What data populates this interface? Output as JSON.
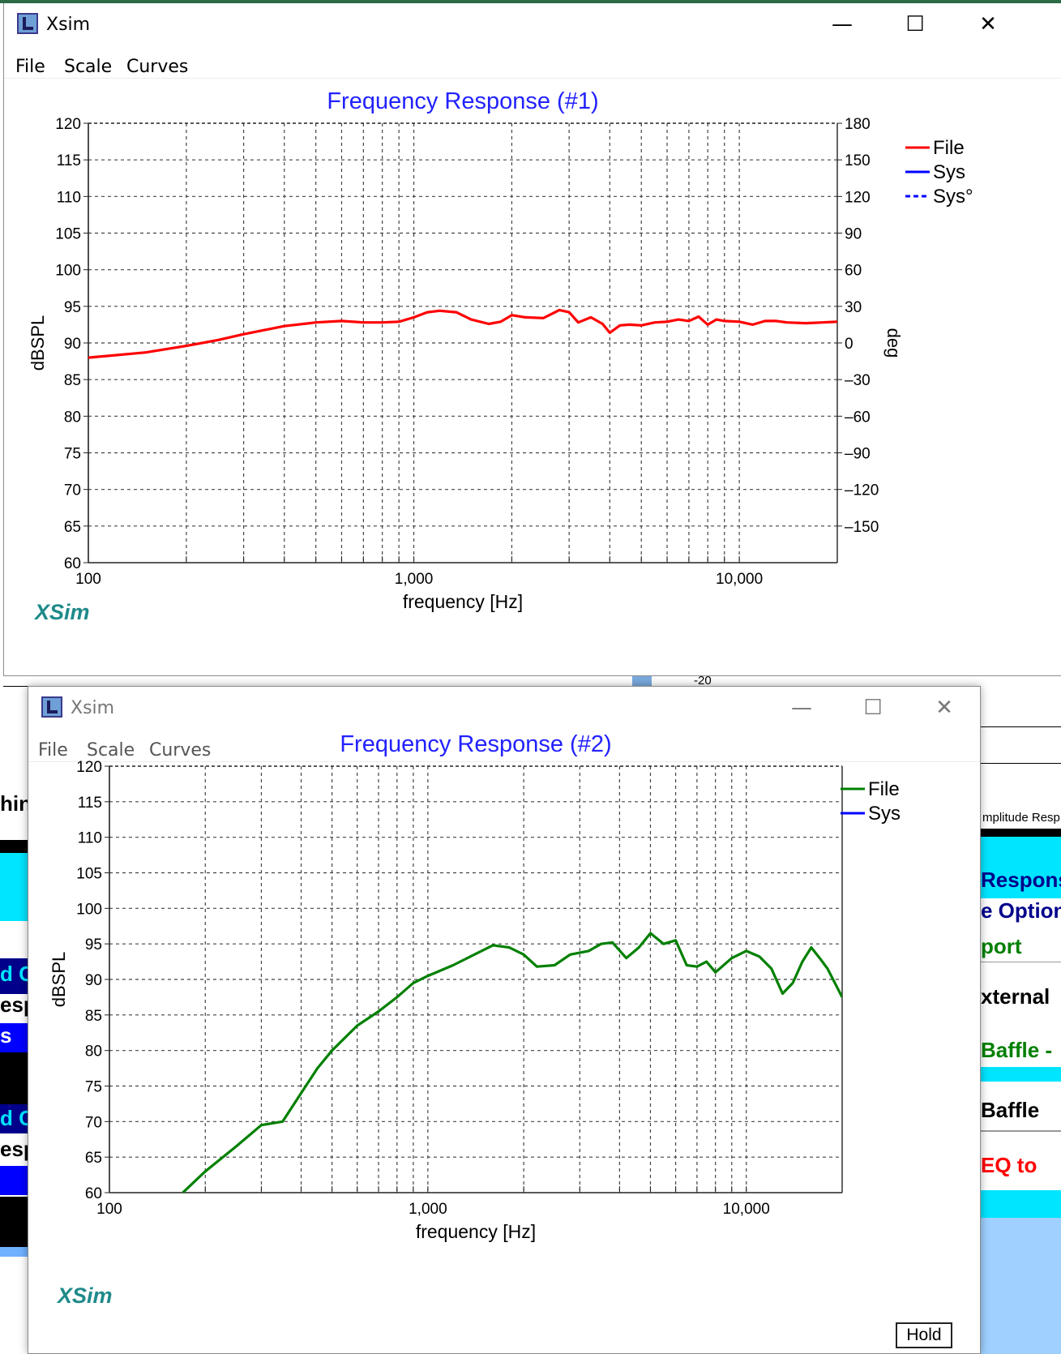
{
  "background": {
    "fragments": [
      "hin",
      "d C",
      "esp",
      "s",
      "d C",
      "esp",
      "Respons",
      "e Option",
      "port",
      "xternal",
      "Baffle -",
      "Baffle",
      "EQ to",
      "mplitude Resp",
      "-20"
    ]
  },
  "windows": [
    {
      "title": "Xsim",
      "menu": [
        "File",
        "Scale",
        "Curves"
      ],
      "minimize": "—",
      "maximize": "☐",
      "close": "✕",
      "logo": "XSim",
      "chart_data": {
        "type": "line",
        "title": "Frequency Response (#1)",
        "xlabel": "frequency [Hz]",
        "ylabel": "dBSPL",
        "y2label": "deg",
        "xscale": "log",
        "xlim": [
          100,
          20000
        ],
        "ylim": [
          60,
          120
        ],
        "y2lim": [
          -180,
          180
        ],
        "xticks": [
          100,
          1000,
          10000
        ],
        "xtick_labels": [
          "100",
          "1,000",
          "10,000"
        ],
        "yticks": [
          60,
          65,
          70,
          75,
          80,
          85,
          90,
          95,
          100,
          105,
          110,
          115,
          120
        ],
        "y2ticks": [
          -150,
          -120,
          -90,
          -60,
          -30,
          0,
          30,
          60,
          90,
          120,
          150,
          180
        ],
        "y2tick_labels": [
          "–150",
          "–120",
          "–90",
          "–60",
          "–30",
          "0",
          "30",
          "60",
          "90",
          "120",
          "150",
          "180"
        ],
        "grid": true,
        "legend": [
          {
            "name": "File",
            "color": "#ff0000",
            "style": "solid"
          },
          {
            "name": "Sys",
            "color": "#0000ff",
            "style": "solid"
          },
          {
            "name": "Sys°",
            "color": "#0000ff",
            "style": "dashed"
          }
        ],
        "legend_position": "right",
        "series": [
          {
            "name": "File",
            "color": "#ff0000",
            "x": [
              100,
              150,
              200,
              250,
              300,
              400,
              500,
              600,
              700,
              800,
              900,
              1000,
              1100,
              1200,
              1350,
              1500,
              1700,
              1850,
              2000,
              2200,
              2500,
              2800,
              3000,
              3200,
              3500,
              3800,
              4000,
              4300,
              4600,
              5000,
              5500,
              6000,
              6500,
              7000,
              7500,
              8000,
              8500,
              9000,
              10000,
              11000,
              12000,
              13000,
              14000,
              16000,
              18000,
              20000
            ],
            "y": [
              88.0,
              88.7,
              89.6,
              90.4,
              91.2,
              92.3,
              92.8,
              93.0,
              92.8,
              92.8,
              92.9,
              93.5,
              94.2,
              94.4,
              94.2,
              93.2,
              92.6,
              92.9,
              93.8,
              93.5,
              93.4,
              94.5,
              94.2,
              92.8,
              93.5,
              92.6,
              91.4,
              92.4,
              92.5,
              92.4,
              92.8,
              92.9,
              93.2,
              93.0,
              93.6,
              92.5,
              93.2,
              93.0,
              92.9,
              92.5,
              93.0,
              93.0,
              92.8,
              92.7,
              92.8,
              92.9
            ]
          }
        ]
      }
    },
    {
      "title": "Xsim",
      "menu": [
        "File",
        "Scale",
        "Curves"
      ],
      "minimize": "—",
      "maximize": "☐",
      "close": "✕",
      "logo": "XSim",
      "hold_label": "Hold",
      "chart_data": {
        "type": "line",
        "title": "Frequency Response (#2)",
        "xlabel": "frequency [Hz]",
        "ylabel": "dBSPL",
        "xscale": "log",
        "xlim": [
          100,
          20000
        ],
        "ylim": [
          60,
          120
        ],
        "xticks": [
          100,
          1000,
          10000
        ],
        "xtick_labels": [
          "100",
          "1,000",
          "10,000"
        ],
        "yticks": [
          60,
          65,
          70,
          75,
          80,
          85,
          90,
          95,
          100,
          105,
          110,
          115,
          120
        ],
        "grid": true,
        "legend": [
          {
            "name": "File",
            "color": "#008000",
            "style": "solid"
          },
          {
            "name": "Sys",
            "color": "#0000ff",
            "style": "solid"
          }
        ],
        "legend_position": "right",
        "series": [
          {
            "name": "File",
            "color": "#008000",
            "x": [
              170,
              200,
              250,
              300,
              350,
              400,
              450,
              500,
              600,
              700,
              800,
              900,
              1000,
              1200,
              1400,
              1600,
              1800,
              2000,
              2200,
              2500,
              2800,
              3200,
              3500,
              3800,
              4200,
              4600,
              5000,
              5500,
              6000,
              6500,
              7000,
              7500,
              8000,
              9000,
              10000,
              11000,
              12000,
              13000,
              14000,
              15000,
              16000,
              17000,
              18000,
              20000
            ],
            "y": [
              60.0,
              63.0,
              66.5,
              69.5,
              70.0,
              74.0,
              77.5,
              80.0,
              83.5,
              85.5,
              87.5,
              89.5,
              90.5,
              92.0,
              93.5,
              94.8,
              94.5,
              93.5,
              91.8,
              92.0,
              93.5,
              94.0,
              95.0,
              95.2,
              93.0,
              94.5,
              96.5,
              95.0,
              95.5,
              92.0,
              91.8,
              92.5,
              91.0,
              93.0,
              94.0,
              93.2,
              91.5,
              88.0,
              89.5,
              92.5,
              94.5,
              93.0,
              91.5,
              87.5
            ]
          }
        ]
      }
    }
  ]
}
